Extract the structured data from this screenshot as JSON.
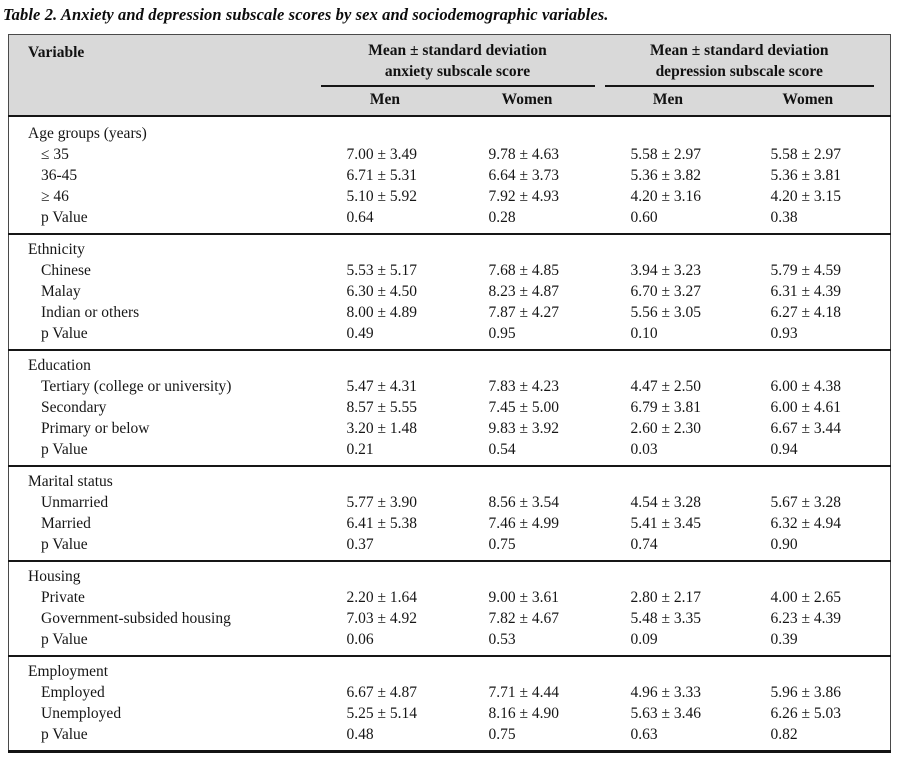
{
  "title": "Table 2. Anxiety and depression subscale scores by sex and sociodemographic variables.",
  "colors": {
    "header_bg": "#d9d9d9",
    "rule": "#161616",
    "text": "#161616"
  },
  "table": {
    "variable_header": "Variable",
    "groups": [
      {
        "line1": "Mean ± standard deviation",
        "line2": "anxiety subscale score"
      },
      {
        "line1": "Mean ± standard deviation",
        "line2": "depression subscale score"
      }
    ],
    "sub_headers": [
      "Men",
      "Women",
      "Men",
      "Women"
    ],
    "sections": [
      {
        "label": "Age groups (years)",
        "rows": [
          {
            "label": "≤ 35",
            "values": [
              "7.00 ± 3.49",
              "9.78 ± 4.63",
              "5.58 ± 2.97",
              "5.58 ± 2.97"
            ]
          },
          {
            "label": "36-45",
            "values": [
              "6.71 ± 5.31",
              "6.64 ± 3.73",
              "5.36 ± 3.82",
              "5.36 ± 3.81"
            ]
          },
          {
            "label": "≥ 46",
            "values": [
              "5.10 ± 5.92",
              "7.92 ± 4.93",
              "4.20 ± 3.16",
              "4.20 ± 3.15"
            ]
          },
          {
            "label": "p Value",
            "values": [
              "0.64",
              "0.28",
              "0.60",
              "0.38"
            ]
          }
        ]
      },
      {
        "label": "Ethnicity",
        "rows": [
          {
            "label": "Chinese",
            "values": [
              "5.53 ± 5.17",
              "7.68 ± 4.85",
              "3.94 ± 3.23",
              "5.79 ± 4.59"
            ]
          },
          {
            "label": "Malay",
            "values": [
              "6.30 ± 4.50",
              "8.23 ± 4.87",
              "6.70 ± 3.27",
              "6.31 ± 4.39"
            ]
          },
          {
            "label": "Indian or others",
            "values": [
              "8.00 ± 4.89",
              "7.87 ± 4.27",
              "5.56 ± 3.05",
              "6.27 ± 4.18"
            ]
          },
          {
            "label": "p Value",
            "values": [
              "0.49",
              "0.95",
              "0.10",
              "0.93"
            ]
          }
        ]
      },
      {
        "label": "Education",
        "rows": [
          {
            "label": "Tertiary (college or university)",
            "values": [
              "5.47 ± 4.31",
              "7.83 ± 4.23",
              "4.47 ± 2.50",
              "6.00 ± 4.38"
            ]
          },
          {
            "label": "Secondary",
            "values": [
              "8.57 ± 5.55",
              "7.45 ± 5.00",
              "6.79 ± 3.81",
              "6.00 ± 4.61"
            ]
          },
          {
            "label": "Primary or below",
            "values": [
              "3.20 ± 1.48",
              "9.83 ± 3.92",
              "2.60 ± 2.30",
              "6.67 ± 3.44"
            ]
          },
          {
            "label": "p Value",
            "values": [
              "0.21",
              "0.54",
              "0.03",
              "0.94"
            ]
          }
        ]
      },
      {
        "label": "Marital status",
        "rows": [
          {
            "label": "Unmarried",
            "values": [
              "5.77 ± 3.90",
              "8.56 ± 3.54",
              "4.54 ± 3.28",
              "5.67 ± 3.28"
            ]
          },
          {
            "label": "Married",
            "values": [
              "6.41 ± 5.38",
              "7.46 ± 4.99",
              "5.41 ± 3.45",
              "6.32 ± 4.94"
            ]
          },
          {
            "label": "p Value",
            "values": [
              "0.37",
              "0.75",
              "0.74",
              "0.90"
            ]
          }
        ]
      },
      {
        "label": "Housing",
        "rows": [
          {
            "label": "Private",
            "values": [
              "2.20 ± 1.64",
              "9.00 ± 3.61",
              "2.80 ± 2.17",
              "4.00 ± 2.65"
            ]
          },
          {
            "label": "Government-subsided housing",
            "values": [
              "7.03 ± 4.92",
              "7.82 ± 4.67",
              "5.48 ± 3.35",
              "6.23 ± 4.39"
            ]
          },
          {
            "label": "p Value",
            "values": [
              "0.06",
              "0.53",
              "0.09",
              "0.39"
            ]
          }
        ]
      },
      {
        "label": "Employment",
        "rows": [
          {
            "label": "Employed",
            "values": [
              "6.67 ± 4.87",
              "7.71 ± 4.44",
              "4.96 ± 3.33",
              "5.96 ± 3.86"
            ]
          },
          {
            "label": "Unemployed",
            "values": [
              "5.25 ± 5.14",
              "8.16 ± 4.90",
              "5.63 ± 3.46",
              "6.26 ± 5.03"
            ]
          },
          {
            "label": "p Value",
            "values": [
              "0.48",
              "0.75",
              "0.63",
              "0.82"
            ]
          }
        ]
      }
    ]
  }
}
